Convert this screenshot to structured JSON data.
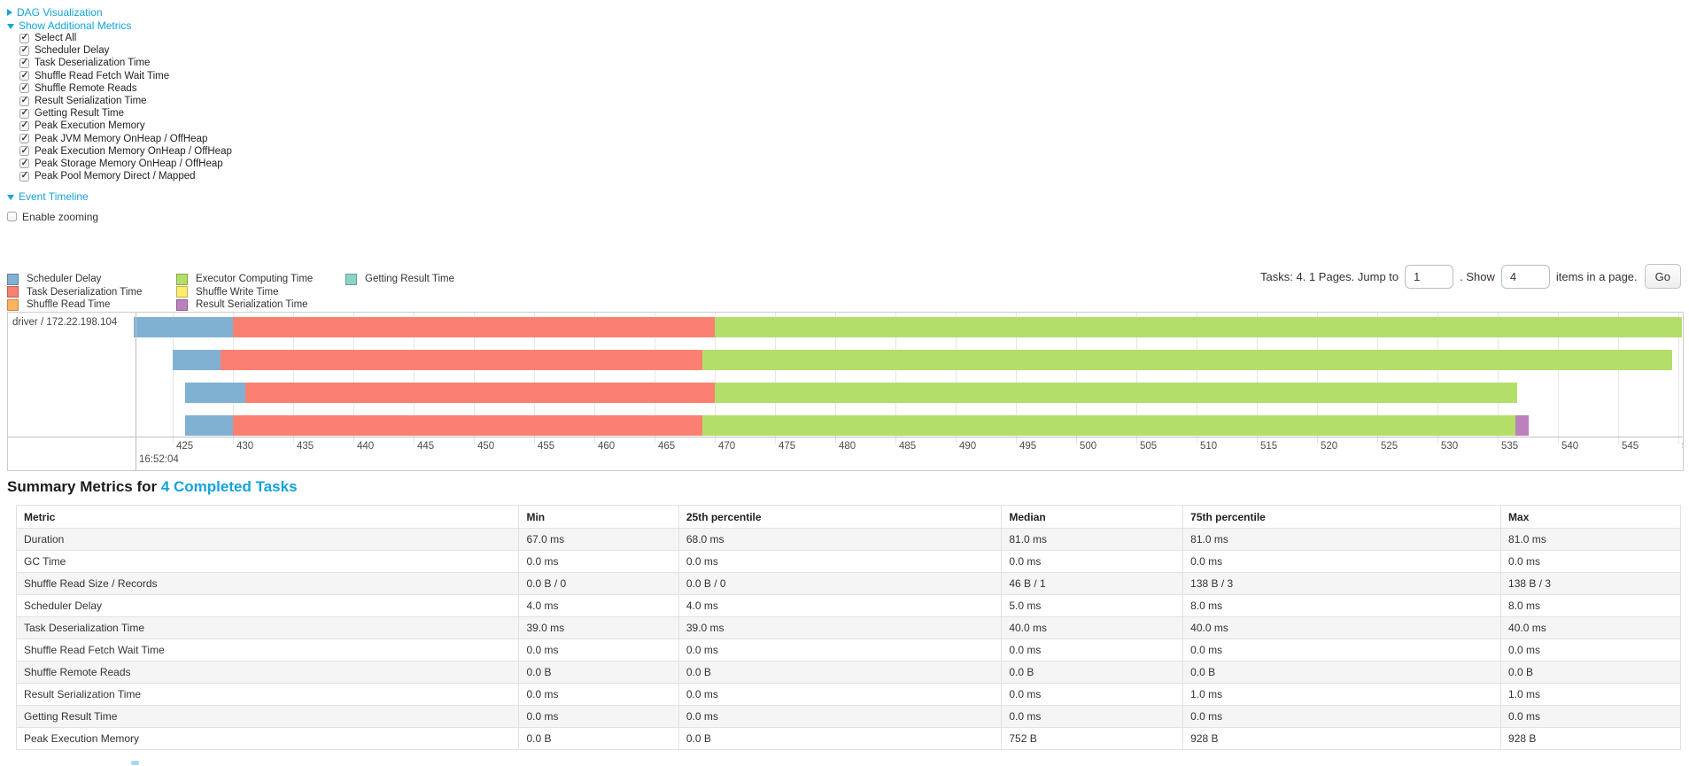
{
  "colors": {
    "link_blue": "#14a3dd",
    "scheduler_delay": "#80B1D3",
    "task_deserialization": "#FB8072",
    "shuffle_read": "#FDB462",
    "executor_computing": "#B3DE69",
    "shuffle_write": "#FFED6F",
    "result_serialization": "#BC80BD",
    "getting_result": "#8DD3C7",
    "table_stripe": "#f5f5f5"
  },
  "toggles": {
    "dag": "DAG Visualization",
    "metrics": "Show Additional Metrics",
    "timeline": "Event Timeline"
  },
  "metric_checkboxes": [
    {
      "label": "Select All",
      "checked": true
    },
    {
      "label": "Scheduler Delay",
      "checked": true
    },
    {
      "label": "Task Deserialization Time",
      "checked": true
    },
    {
      "label": "Shuffle Read Fetch Wait Time",
      "checked": true
    },
    {
      "label": "Shuffle Remote Reads",
      "checked": true
    },
    {
      "label": "Result Serialization Time",
      "checked": true
    },
    {
      "label": "Getting Result Time",
      "checked": true
    },
    {
      "label": "Peak Execution Memory",
      "checked": true
    },
    {
      "label": "Peak JVM Memory OnHeap / OffHeap",
      "checked": true
    },
    {
      "label": "Peak Execution Memory OnHeap / OffHeap",
      "checked": true
    },
    {
      "label": "Peak Storage Memory OnHeap / OffHeap",
      "checked": true
    },
    {
      "label": "Peak Pool Memory Direct / Mapped",
      "checked": true
    }
  ],
  "enable_zooming": {
    "label": "Enable zooming",
    "checked": false
  },
  "legend": {
    "columns": [
      [
        {
          "label": "Scheduler Delay",
          "color": "#80B1D3"
        },
        {
          "label": "Task Deserialization Time",
          "color": "#FB8072"
        },
        {
          "label": "Shuffle Read Time",
          "color": "#FDB462"
        }
      ],
      [
        {
          "label": "Executor Computing Time",
          "color": "#B3DE69"
        },
        {
          "label": "Shuffle Write Time",
          "color": "#FFED6F"
        },
        {
          "label": "Result Serialization Time",
          "color": "#BC80BD"
        }
      ],
      [
        {
          "label": "Getting Result Time",
          "color": "#8DD3C7"
        }
      ]
    ]
  },
  "pagination": {
    "prefix": "Tasks: 4. 1 Pages. Jump to",
    "jump_value": "1",
    "mid": ". Show",
    "show_value": "4",
    "suffix": "items in a page.",
    "go_label": "Go"
  },
  "chart_data": {
    "type": "timeline-gantt",
    "title": "Event Timeline",
    "group_label": "driver / 172.22.198.104",
    "x_axis": {
      "major_label": "16:52:04",
      "unit": "milliseconds after 16:52:04.000",
      "tick_start_ms": 425,
      "tick_end_ms": 550,
      "tick_step_ms": 5,
      "window_ms": [
        421.8,
        550.5
      ]
    },
    "series_colors": {
      "Scheduler Delay": "#80B1D3",
      "Task Deserialization Time": "#FB8072",
      "Shuffle Read Time": "#FDB462",
      "Executor Computing Time": "#B3DE69",
      "Shuffle Write Time": "#FFED6F",
      "Result Serialization Time": "#BC80BD",
      "Getting Result Time": "#8DD3C7"
    },
    "tasks": [
      {
        "segments": [
          {
            "metric": "Scheduler Delay",
            "start_ms": 421.8,
            "end_ms": 430.0
          },
          {
            "metric": "Task Deserialization Time",
            "start_ms": 430.0,
            "end_ms": 470.0
          },
          {
            "metric": "Executor Computing Time",
            "start_ms": 470.0,
            "end_ms": 550.3
          }
        ]
      },
      {
        "segments": [
          {
            "metric": "Scheduler Delay",
            "start_ms": 425.0,
            "end_ms": 429.0
          },
          {
            "metric": "Task Deserialization Time",
            "start_ms": 429.0,
            "end_ms": 469.0
          },
          {
            "metric": "Executor Computing Time",
            "start_ms": 469.0,
            "end_ms": 549.5
          }
        ]
      },
      {
        "segments": [
          {
            "metric": "Scheduler Delay",
            "start_ms": 426.0,
            "end_ms": 431.0
          },
          {
            "metric": "Task Deserialization Time",
            "start_ms": 431.0,
            "end_ms": 470.0
          },
          {
            "metric": "Executor Computing Time",
            "start_ms": 470.0,
            "end_ms": 536.6
          }
        ]
      },
      {
        "segments": [
          {
            "metric": "Scheduler Delay",
            "start_ms": 426.0,
            "end_ms": 430.0
          },
          {
            "metric": "Task Deserialization Time",
            "start_ms": 430.0,
            "end_ms": 469.0
          },
          {
            "metric": "Executor Computing Time",
            "start_ms": 469.0,
            "end_ms": 536.5
          },
          {
            "metric": "Result Serialization Time",
            "start_ms": 536.5,
            "end_ms": 537.6
          }
        ]
      }
    ]
  },
  "summary": {
    "title_prefix": "Summary Metrics for ",
    "title_link": "4 Completed Tasks",
    "columns": [
      "Metric",
      "Min",
      "25th percentile",
      "Median",
      "75th percentile",
      "Max"
    ],
    "rows": [
      [
        "Duration",
        "67.0 ms",
        "68.0 ms",
        "81.0 ms",
        "81.0 ms",
        "81.0 ms"
      ],
      [
        "GC Time",
        "0.0 ms",
        "0.0 ms",
        "0.0 ms",
        "0.0 ms",
        "0.0 ms"
      ],
      [
        "Shuffle Read Size / Records",
        "0.0 B / 0",
        "0.0 B / 0",
        "46 B / 1",
        "138 B / 3",
        "138 B / 3"
      ],
      [
        "Scheduler Delay",
        "4.0 ms",
        "4.0 ms",
        "5.0 ms",
        "8.0 ms",
        "8.0 ms"
      ],
      [
        "Task Deserialization Time",
        "39.0 ms",
        "39.0 ms",
        "40.0 ms",
        "40.0 ms",
        "40.0 ms"
      ],
      [
        "Shuffle Read Fetch Wait Time",
        "0.0 ms",
        "0.0 ms",
        "0.0 ms",
        "0.0 ms",
        "0.0 ms"
      ],
      [
        "Shuffle Remote Reads",
        "0.0 B",
        "0.0 B",
        "0.0 B",
        "0.0 B",
        "0.0 B"
      ],
      [
        "Result Serialization Time",
        "0.0 ms",
        "0.0 ms",
        "0.0 ms",
        "1.0 ms",
        "1.0 ms"
      ],
      [
        "Getting Result Time",
        "0.0 ms",
        "0.0 ms",
        "0.0 ms",
        "0.0 ms",
        "0.0 ms"
      ],
      [
        "Peak Execution Memory",
        "0.0 B",
        "0.0 B",
        "752 B",
        "928 B",
        "928 B"
      ]
    ]
  }
}
